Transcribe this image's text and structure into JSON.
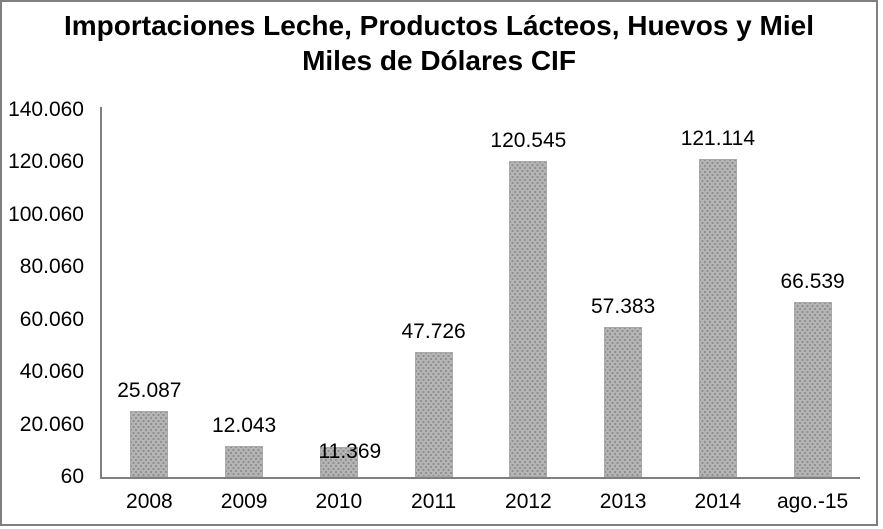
{
  "title": {
    "line1": "Importaciones Leche, Productos Lácteos, Huevos y Miel",
    "line2": "Miles de Dólares CIF"
  },
  "y_axis": {
    "tick_labels": [
      "140.060",
      "120.060",
      "100.060",
      "80.060",
      "60.060",
      "40.060",
      "20.060",
      "60"
    ],
    "min": 60,
    "max": 140060,
    "tick_interval": 20000
  },
  "chart_data": {
    "type": "bar",
    "title": "Importaciones Leche, Productos Lácteos, Huevos y Miel",
    "subtitle": "Miles de Dólares CIF",
    "categories": [
      "2008",
      "2009",
      "2010",
      "2011",
      "2012",
      "2013",
      "2014",
      "ago.-15"
    ],
    "values": [
      25087,
      12043,
      11369,
      47726,
      120545,
      57383,
      121114,
      66539
    ],
    "value_labels": [
      "25.087",
      "12.043",
      "11.369",
      "47.726",
      "120.545",
      "57.383",
      "121.114",
      "66.539"
    ],
    "xlabel": "",
    "ylabel": "",
    "ylim": [
      60,
      140060
    ],
    "grid": "off",
    "legend": "none",
    "colors": {
      "bar_fill": "#b4b4b4",
      "bar_dots": "#8d8d8d",
      "bar_border": "#a9a9a9",
      "axis": "#7f7f7f",
      "text": "#000000",
      "background": "#ffffff"
    },
    "label_offsets": [
      {
        "dx": 0,
        "dy": 0
      },
      {
        "dx": 0,
        "dy": 0
      },
      {
        "dx": 11,
        "dy": 25
      },
      {
        "dx": 0,
        "dy": 0
      },
      {
        "dx": 0,
        "dy": 0
      },
      {
        "dx": 0,
        "dy": 0
      },
      {
        "dx": 0,
        "dy": 0
      },
      {
        "dx": 0,
        "dy": 0
      }
    ]
  }
}
